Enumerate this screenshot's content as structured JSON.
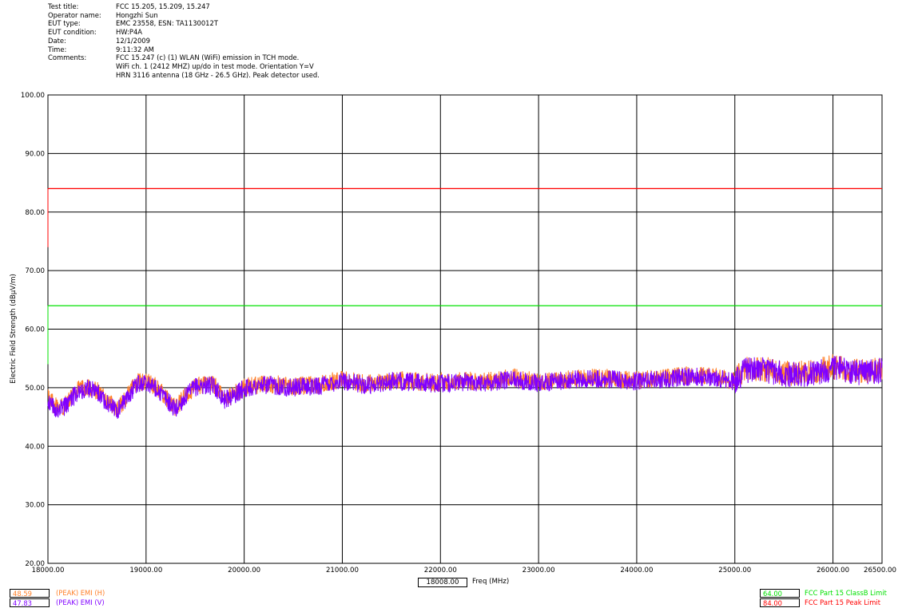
{
  "header": {
    "rows": [
      {
        "label": "Test title:",
        "values": [
          "FCC 15.205, 15.209, 15.247"
        ]
      },
      {
        "label": "Operator name:",
        "values": [
          "Hongzhi Sun"
        ]
      },
      {
        "label": "EUT type:",
        "values": [
          "EMC 23558, ESN: TA1130012T"
        ]
      },
      {
        "label": "EUT condition:",
        "values": [
          "HW:P4A"
        ]
      },
      {
        "label": "Date:",
        "values": [
          "12/1/2009"
        ]
      },
      {
        "label": "Time:",
        "values": [
          "9:11:32 AM"
        ]
      },
      {
        "label": "Comments:",
        "values": [
          "FCC 15.247 (c) (1) WLAN (WiFi) emission in TCH mode.",
          "WiFi ch. 1 (2412 MHZ) up/do in test mode. Orientation Y=V",
          "HRN 3116 antenna (18 GHz - 26.5 GHz). Peak detector used."
        ]
      }
    ]
  },
  "cursor": {
    "freq_value": "18008.00",
    "freq_label": "Freq (MHz)"
  },
  "legend_left": [
    {
      "value": "48.59",
      "label": "(PEAK) EMI (H)",
      "color": "#ff7f27"
    },
    {
      "value": "47.83",
      "label": "(PEAK) EMI (V)",
      "color": "#8000ff"
    }
  ],
  "legend_right": [
    {
      "value": "64.00",
      "label": "FCC Part 15 ClassB Limit",
      "color": "#00e000"
    },
    {
      "value": "84.00",
      "label": "FCC Part 15 Peak Limit",
      "color": "#ff0000"
    }
  ],
  "chart_data": {
    "type": "line",
    "title": "",
    "xlabel": "Freq (MHz)",
    "ylabel": "Electric Field Strength (dBµV/m)",
    "xlim": [
      18000,
      26500
    ],
    "ylim": [
      20,
      100
    ],
    "grid": true,
    "x_ticks": [
      18000,
      19000,
      20000,
      21000,
      22000,
      23000,
      24000,
      25000,
      26000,
      26500
    ],
    "x_tick_labels": [
      "18000.00",
      "19000.00",
      "20000.00",
      "21000.00",
      "22000.00",
      "23000.00",
      "24000.00",
      "25000.00",
      "26000.00",
      "26500.00"
    ],
    "y_ticks": [
      20,
      30,
      40,
      50,
      60,
      70,
      80,
      90,
      100
    ],
    "y_tick_labels": [
      "20.00",
      "30.00",
      "40.00",
      "50.00",
      "60.00",
      "70.00",
      "80.00",
      "90.00",
      "100.00"
    ],
    "series": [
      {
        "name": "(PEAK) EMI (H)",
        "color": "#ff7f27",
        "x": [
          18000,
          18100,
          18200,
          18300,
          18400,
          18500,
          18600,
          18700,
          18800,
          18900,
          19000,
          19100,
          19200,
          19300,
          19400,
          19500,
          19600,
          19700,
          19800,
          19900,
          20000,
          20250,
          20500,
          20750,
          21000,
          21250,
          21500,
          21750,
          22000,
          22250,
          22500,
          22750,
          23000,
          23250,
          23500,
          23750,
          24000,
          24250,
          24500,
          24750,
          25000,
          25100,
          25250,
          25500,
          25750,
          26000,
          26250,
          26500
        ],
        "y": [
          48.2,
          46.5,
          47.3,
          49.6,
          50.2,
          49.5,
          47.8,
          46.1,
          48.3,
          50.8,
          51.1,
          50.2,
          48.4,
          46.4,
          48.6,
          50.3,
          50.6,
          50.4,
          48.2,
          48.9,
          50.1,
          50.7,
          50.2,
          50.5,
          51.4,
          50.6,
          51.3,
          51.1,
          50.9,
          51.2,
          51.1,
          51.7,
          51.0,
          51.4,
          51.7,
          51.6,
          51.3,
          51.6,
          52.1,
          52.0,
          51.2,
          53.1,
          53.4,
          52.5,
          52.4,
          53.6,
          52.8,
          53.1
        ]
      },
      {
        "name": "(PEAK) EMI (V)",
        "color": "#8000ff",
        "x": [
          18000,
          18100,
          18200,
          18300,
          18400,
          18500,
          18600,
          18700,
          18800,
          18900,
          19000,
          19100,
          19200,
          19300,
          19400,
          19500,
          19600,
          19700,
          19800,
          19900,
          20000,
          20250,
          20500,
          20750,
          21000,
          21250,
          21500,
          21750,
          22000,
          22250,
          22500,
          22750,
          23000,
          23250,
          23500,
          23750,
          24000,
          24250,
          24500,
          24750,
          25000,
          25100,
          25250,
          25500,
          25750,
          26000,
          26250,
          26500
        ],
        "y": [
          47.8,
          46.2,
          47.0,
          49.3,
          50.0,
          49.3,
          47.5,
          45.9,
          48.0,
          50.5,
          50.9,
          50.0,
          48.1,
          46.2,
          48.4,
          50.1,
          50.4,
          50.2,
          48.0,
          48.7,
          49.9,
          50.5,
          50.0,
          50.3,
          51.2,
          50.4,
          51.1,
          50.9,
          50.7,
          51.0,
          50.9,
          51.5,
          50.8,
          51.2,
          51.5,
          51.4,
          51.1,
          51.4,
          51.9,
          51.8,
          51.0,
          52.9,
          53.2,
          52.3,
          52.2,
          53.4,
          52.6,
          52.9
        ]
      },
      {
        "name": "FCC Part 15 ClassB Limit",
        "color": "#00e000",
        "x": [
          18000,
          26500
        ],
        "y": [
          64,
          64
        ]
      },
      {
        "name": "FCC Part 15 Peak Limit",
        "color": "#ff0000",
        "x": [
          18000,
          26500
        ],
        "y": [
          84,
          84
        ]
      }
    ]
  }
}
